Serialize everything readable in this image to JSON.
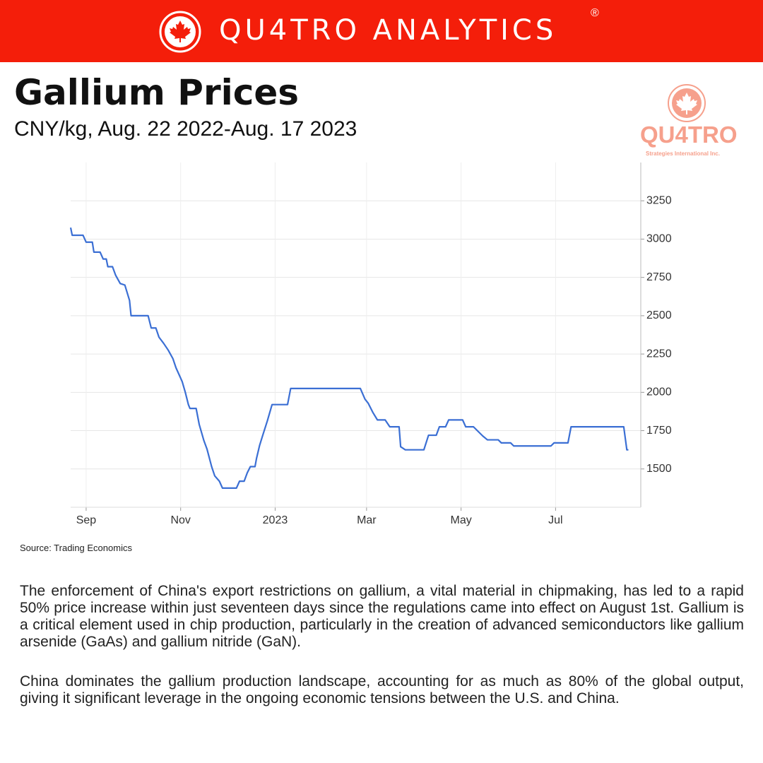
{
  "header": {
    "brand": "QU4TRO ANALYTICS",
    "mark": "®"
  },
  "title": "Gallium Prices",
  "subtitle": "CNY/kg, Aug. 22 2022-Aug. 17 2023",
  "logo": {
    "name": "QU4TRO",
    "tagline": "Strategies International Inc."
  },
  "chart_data": {
    "type": "line",
    "x": [
      "2022-08-22",
      "2022-08-23",
      "2022-08-30",
      "2022-09-01",
      "2022-09-05",
      "2022-09-06",
      "2022-09-10",
      "2022-09-12",
      "2022-09-14",
      "2022-09-15",
      "2022-09-18",
      "2022-09-20",
      "2022-09-23",
      "2022-09-26",
      "2022-09-29",
      "2022-09-30",
      "2022-10-11",
      "2022-10-13",
      "2022-10-16",
      "2022-10-18",
      "2022-10-21",
      "2022-10-24",
      "2022-10-27",
      "2022-10-29",
      "2022-11-02",
      "2022-11-04",
      "2022-11-06",
      "2022-11-07",
      "2022-11-11",
      "2022-11-13",
      "2022-11-16",
      "2022-11-18",
      "2022-11-21",
      "2022-11-23",
      "2022-11-26",
      "2022-11-28",
      "2022-12-07",
      "2022-12-09",
      "2022-12-12",
      "2022-12-14",
      "2022-12-16",
      "2022-12-19",
      "2022-12-20",
      "2022-12-22",
      "2022-12-24",
      "2022-12-27",
      "2022-12-30",
      "2023-01-09",
      "2023-01-11",
      "2023-02-25",
      "2023-02-28",
      "2023-03-02",
      "2023-03-05",
      "2023-03-08",
      "2023-03-13",
      "2023-03-16",
      "2023-03-22",
      "2023-03-23",
      "2023-03-26",
      "2023-04-07",
      "2023-04-10",
      "2023-04-15",
      "2023-04-17",
      "2023-04-21",
      "2023-04-23",
      "2023-05-02",
      "2023-05-04",
      "2023-05-09",
      "2023-05-12",
      "2023-05-15",
      "2023-05-18",
      "2023-05-25",
      "2023-05-27",
      "2023-06-02",
      "2023-06-04",
      "2023-06-28",
      "2023-06-30",
      "2023-07-09",
      "2023-07-11",
      "2023-08-14",
      "2023-08-16",
      "2023-08-17"
    ],
    "series": [
      {
        "color": "#3b6fd4",
        "values": [
          3075,
          3025,
          3025,
          2980,
          2980,
          2915,
          2915,
          2870,
          2870,
          2820,
          2820,
          2765,
          2710,
          2700,
          2600,
          2500,
          2500,
          2420,
          2420,
          2360,
          2320,
          2275,
          2220,
          2160,
          2070,
          2000,
          1920,
          1895,
          1895,
          1790,
          1685,
          1630,
          1515,
          1455,
          1420,
          1375,
          1375,
          1420,
          1420,
          1475,
          1515,
          1515,
          1570,
          1655,
          1720,
          1815,
          1920,
          1920,
          2025,
          2025,
          1955,
          1930,
          1870,
          1820,
          1820,
          1775,
          1775,
          1645,
          1625,
          1625,
          1720,
          1720,
          1775,
          1775,
          1820,
          1820,
          1775,
          1775,
          1745,
          1715,
          1690,
          1690,
          1670,
          1670,
          1650,
          1650,
          1670,
          1670,
          1775,
          1775,
          1625,
          1625
        ]
      }
    ],
    "xlim": [
      "2022-08-22",
      "2023-08-25"
    ],
    "xticks": [
      {
        "value": "2022-09-01",
        "label": "Sep"
      },
      {
        "value": "2022-11-01",
        "label": "Nov"
      },
      {
        "value": "2023-01-01",
        "label": "2023"
      },
      {
        "value": "2023-03-01",
        "label": "Mar"
      },
      {
        "value": "2023-05-01",
        "label": "May"
      },
      {
        "value": "2023-07-01",
        "label": "Jul"
      }
    ],
    "ylim": [
      1250,
      3500
    ],
    "yticks": [
      1500,
      1750,
      2000,
      2250,
      2500,
      2750,
      3000,
      3250
    ],
    "grid": true
  },
  "source": "Source: Trading Economics",
  "body": {
    "paragraphs": [
      "The enforcement of China's export restrictions on gallium, a vital material in chipmaking, has led to a rapid 50% price increase within just seventeen days since the regulations came into effect on August 1st. Gallium is a critical element used in chip production, particularly in the creation of advanced semiconductors like gallium arsenide (GaAs) and gallium nitride (GaN).",
      "China dominates the gallium production landscape, accounting for as much as 80% of the global output, giving it significant leverage in the ongoing economic tensions between the U.S. and China."
    ]
  }
}
